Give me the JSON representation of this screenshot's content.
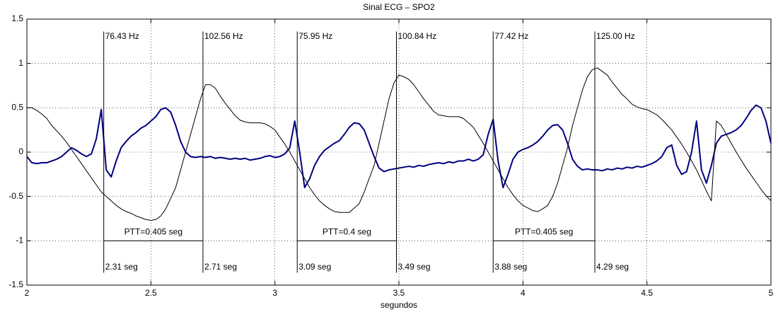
{
  "chart_data": {
    "type": "line",
    "title": "Sinal ECG – SPO2",
    "x_label": "segundos",
    "xlim": [
      2,
      5
    ],
    "ylim": [
      -1.5,
      1.5
    ],
    "xticks": [
      2,
      2.5,
      3,
      3.5,
      4,
      4.5,
      5
    ],
    "yticks": [
      -1.5,
      -1,
      -0.5,
      0,
      0.5,
      1,
      1.5
    ],
    "grid": true,
    "x": [
      2.0,
      2.02,
      2.04,
      2.06,
      2.08,
      2.1,
      2.12,
      2.14,
      2.16,
      2.18,
      2.2,
      2.22,
      2.24,
      2.26,
      2.28,
      2.3,
      2.32,
      2.34,
      2.36,
      2.38,
      2.4,
      2.42,
      2.44,
      2.46,
      2.48,
      2.5,
      2.52,
      2.54,
      2.56,
      2.58,
      2.6,
      2.62,
      2.64,
      2.66,
      2.68,
      2.7,
      2.72,
      2.74,
      2.76,
      2.78,
      2.8,
      2.82,
      2.84,
      2.86,
      2.88,
      2.9,
      2.92,
      2.94,
      2.96,
      2.98,
      3.0,
      3.02,
      3.04,
      3.06,
      3.08,
      3.1,
      3.12,
      3.14,
      3.16,
      3.18,
      3.2,
      3.22,
      3.24,
      3.26,
      3.28,
      3.3,
      3.32,
      3.34,
      3.36,
      3.38,
      3.4,
      3.42,
      3.44,
      3.46,
      3.48,
      3.5,
      3.52,
      3.54,
      3.56,
      3.58,
      3.6,
      3.62,
      3.64,
      3.66,
      3.68,
      3.7,
      3.72,
      3.74,
      3.76,
      3.78,
      3.8,
      3.82,
      3.84,
      3.86,
      3.88,
      3.9,
      3.92,
      3.94,
      3.96,
      3.98,
      4.0,
      4.02,
      4.04,
      4.06,
      4.08,
      4.1,
      4.12,
      4.14,
      4.16,
      4.18,
      4.2,
      4.22,
      4.24,
      4.26,
      4.28,
      4.3,
      4.32,
      4.34,
      4.36,
      4.38,
      4.4,
      4.42,
      4.44,
      4.46,
      4.48,
      4.5,
      4.52,
      4.54,
      4.56,
      4.58,
      4.6,
      4.62,
      4.64,
      4.66,
      4.68,
      4.7,
      4.72,
      4.74,
      4.76,
      4.78,
      4.8,
      4.82,
      4.84,
      4.86,
      4.88,
      4.9,
      4.92,
      4.94,
      4.96,
      4.98,
      5.0
    ],
    "series": [
      {
        "color": "#00007f",
        "width": 2,
        "values": [
          -0.05,
          -0.12,
          -0.13,
          -0.12,
          -0.12,
          -0.1,
          -0.08,
          -0.05,
          0.0,
          0.05,
          0.02,
          -0.02,
          -0.05,
          -0.02,
          0.15,
          0.48,
          -0.2,
          -0.28,
          -0.1,
          0.05,
          0.12,
          0.18,
          0.22,
          0.27,
          0.3,
          0.35,
          0.4,
          0.48,
          0.5,
          0.45,
          0.3,
          0.12,
          0.0,
          -0.05,
          -0.06,
          -0.05,
          -0.06,
          -0.05,
          -0.07,
          -0.06,
          -0.07,
          -0.08,
          -0.07,
          -0.08,
          -0.07,
          -0.09,
          -0.08,
          -0.07,
          -0.05,
          -0.04,
          -0.06,
          -0.05,
          -0.02,
          0.05,
          0.35,
          0.0,
          -0.4,
          -0.3,
          -0.15,
          -0.05,
          0.02,
          0.06,
          0.1,
          0.13,
          0.2,
          0.28,
          0.33,
          0.32,
          0.25,
          0.1,
          -0.05,
          -0.18,
          -0.22,
          -0.2,
          -0.19,
          -0.18,
          -0.17,
          -0.16,
          -0.17,
          -0.15,
          -0.16,
          -0.14,
          -0.13,
          -0.12,
          -0.13,
          -0.11,
          -0.12,
          -0.1,
          -0.1,
          -0.08,
          -0.1,
          -0.08,
          -0.03,
          0.2,
          0.37,
          -0.1,
          -0.4,
          -0.25,
          -0.08,
          0.0,
          0.03,
          0.05,
          0.08,
          0.12,
          0.18,
          0.25,
          0.3,
          0.31,
          0.25,
          0.1,
          -0.08,
          -0.16,
          -0.2,
          -0.19,
          -0.2,
          -0.2,
          -0.21,
          -0.19,
          -0.2,
          -0.18,
          -0.19,
          -0.17,
          -0.18,
          -0.16,
          -0.17,
          -0.15,
          -0.13,
          -0.1,
          -0.05,
          0.05,
          0.08,
          -0.15,
          -0.25,
          -0.22,
          0.0,
          0.35,
          -0.2,
          -0.35,
          -0.15,
          0.1,
          0.18,
          0.2,
          0.22,
          0.25,
          0.3,
          0.38,
          0.47,
          0.53,
          0.5,
          0.35,
          0.1
        ]
      },
      {
        "color": "#000000",
        "width": 1,
        "values": [
          0.5,
          0.5,
          0.47,
          0.43,
          0.38,
          0.3,
          0.24,
          0.18,
          0.11,
          0.03,
          -0.05,
          -0.13,
          -0.21,
          -0.29,
          -0.37,
          -0.45,
          -0.5,
          -0.55,
          -0.6,
          -0.64,
          -0.67,
          -0.69,
          -0.72,
          -0.74,
          -0.76,
          -0.77,
          -0.76,
          -0.72,
          -0.64,
          -0.52,
          -0.4,
          -0.2,
          0.0,
          0.2,
          0.4,
          0.6,
          0.76,
          0.76,
          0.72,
          0.63,
          0.55,
          0.48,
          0.41,
          0.36,
          0.34,
          0.33,
          0.33,
          0.33,
          0.32,
          0.29,
          0.25,
          0.17,
          0.09,
          0.0,
          -0.1,
          -0.2,
          -0.3,
          -0.4,
          -0.48,
          -0.55,
          -0.6,
          -0.64,
          -0.67,
          -0.68,
          -0.68,
          -0.68,
          -0.63,
          -0.58,
          -0.45,
          -0.3,
          -0.15,
          0.1,
          0.35,
          0.6,
          0.78,
          0.87,
          0.85,
          0.82,
          0.76,
          0.68,
          0.6,
          0.53,
          0.46,
          0.42,
          0.41,
          0.4,
          0.4,
          0.4,
          0.38,
          0.33,
          0.28,
          0.19,
          0.1,
          0.0,
          -0.1,
          -0.2,
          -0.3,
          -0.4,
          -0.48,
          -0.55,
          -0.6,
          -0.63,
          -0.66,
          -0.67,
          -0.64,
          -0.6,
          -0.5,
          -0.35,
          -0.15,
          0.05,
          0.3,
          0.5,
          0.7,
          0.85,
          0.93,
          0.95,
          0.91,
          0.87,
          0.79,
          0.72,
          0.65,
          0.6,
          0.54,
          0.51,
          0.49,
          0.48,
          0.45,
          0.42,
          0.37,
          0.31,
          0.25,
          0.17,
          0.09,
          0.0,
          -0.1,
          -0.2,
          -0.32,
          -0.44,
          -0.55,
          0.35,
          0.3,
          0.2,
          0.1,
          0.0,
          -0.09,
          -0.18,
          -0.26,
          -0.34,
          -0.42,
          -0.49,
          -0.55
        ]
      }
    ],
    "markers": [
      {
        "x": 2.31,
        "top_label": "76.43 Hz",
        "bottom_label": "2.31 seg"
      },
      {
        "x": 2.71,
        "top_label": "102.56 Hz",
        "bottom_label": "2.71 seg"
      },
      {
        "x": 3.09,
        "top_label": "75.95 Hz",
        "bottom_label": "3.09 seg"
      },
      {
        "x": 3.49,
        "top_label": "100.84 Hz",
        "bottom_label": "3.49 seg"
      },
      {
        "x": 3.88,
        "top_label": "77.42 Hz",
        "bottom_label": "3.88 seg"
      },
      {
        "x": 4.29,
        "top_label": "125.00 Hz",
        "bottom_label": "4.29 seg"
      }
    ],
    "ptt": [
      {
        "x0": 2.31,
        "x1": 2.71,
        "y": -1,
        "label": "PTT=0.405 seg"
      },
      {
        "x0": 3.09,
        "x1": 3.49,
        "y": -1,
        "label": "PTT=0.4 seg"
      },
      {
        "x0": 3.88,
        "x1": 4.29,
        "y": -1,
        "label": "PTT=0.405 seg"
      }
    ]
  }
}
